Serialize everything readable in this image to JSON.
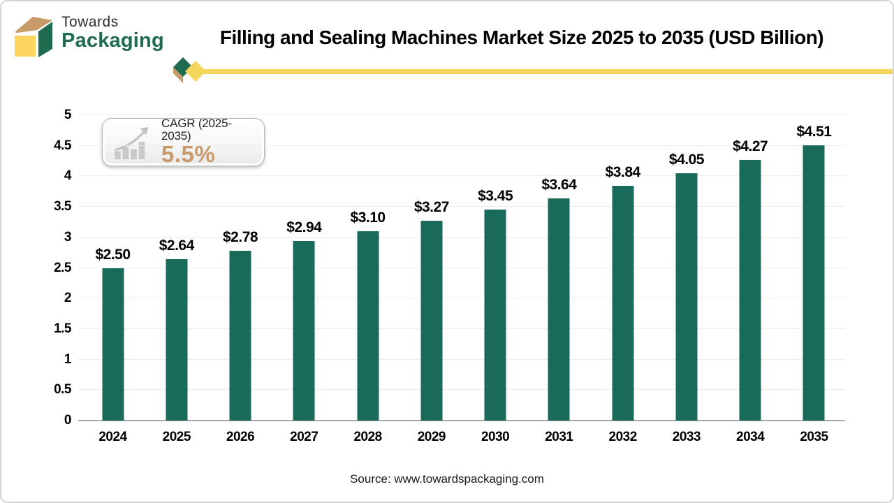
{
  "logo": {
    "line1": "Towards",
    "line2": "Packaging"
  },
  "header": {
    "title": "Filling and Sealing Machines Market Size 2025 to 2035 (USD Billion)"
  },
  "cagr_badge": {
    "label": "CAGR (2025-2035)",
    "value": "5.5%"
  },
  "chart_data": {
    "type": "bar",
    "title": "Filling and Sealing Machines Market Size 2025 to 2035 (USD Billion)",
    "categories": [
      "2024",
      "2025",
      "2026",
      "2027",
      "2028",
      "2029",
      "2030",
      "2031",
      "2032",
      "2033",
      "2034",
      "2035"
    ],
    "values": [
      2.5,
      2.64,
      2.78,
      2.94,
      3.1,
      3.27,
      3.45,
      3.64,
      3.84,
      4.05,
      4.27,
      4.51
    ],
    "bar_labels": [
      "$2.50",
      "$2.64",
      "$2.78",
      "$2.94",
      "$3.10",
      "$3.27",
      "$3.45",
      "$3.64",
      "$3.84",
      "$4.05",
      "$4.27",
      "$4.51"
    ],
    "xlabel": "",
    "ylabel": "",
    "ylim": [
      0,
      5
    ],
    "ytick_values": [
      0,
      0.5,
      1,
      1.5,
      2,
      2.5,
      3,
      3.5,
      4,
      4.5,
      5
    ],
    "ytick_labels": [
      "0",
      "0.5",
      "1",
      "1.5",
      "2",
      "2.5",
      "3",
      "3.5",
      "4",
      "4.5",
      "5"
    ],
    "grid": true,
    "legend": "none",
    "bar_color": "#196a58"
  },
  "footer": {
    "source": "Source: www.towardspackaging.com"
  },
  "colors": {
    "bar": "#196a58",
    "logo_green": "#1e6b50",
    "logo_yellow": "#fbd55e",
    "logo_tan": "#c69a69",
    "divider_yellow": "#f5d65c",
    "cagr_value": "#c7996b",
    "gridline": "#ececec",
    "axis_line": "#a6a6a6"
  }
}
